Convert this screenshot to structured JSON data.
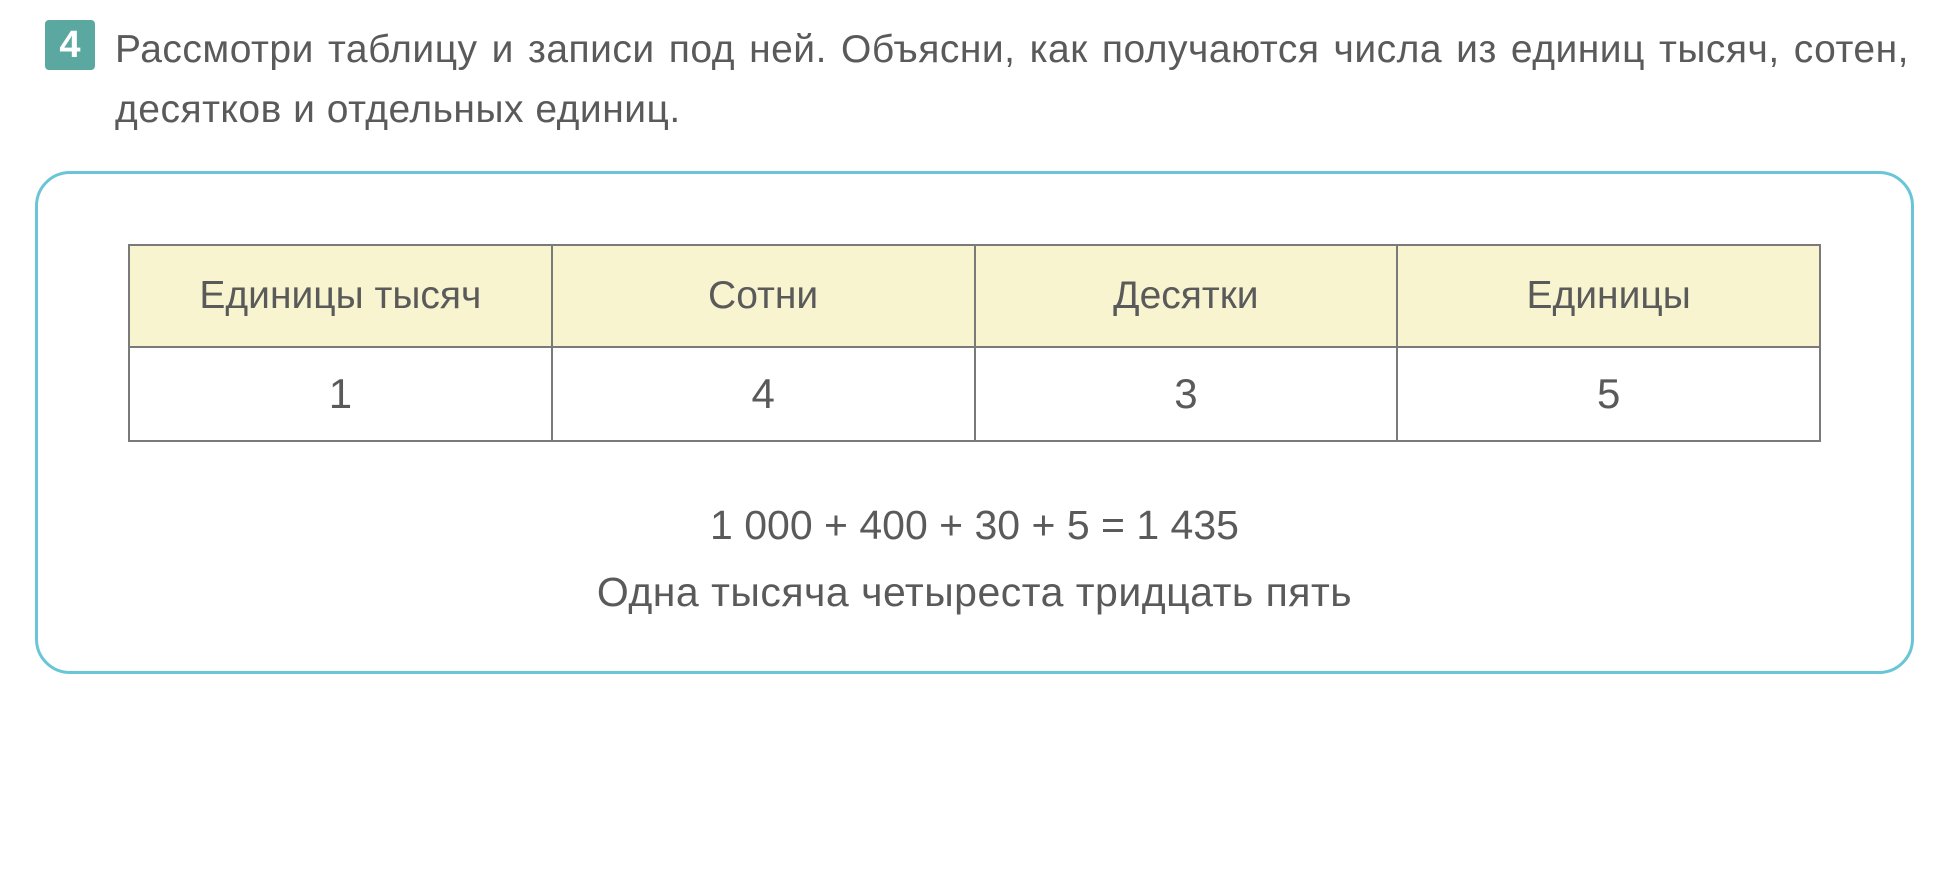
{
  "task": {
    "number": "4",
    "text": "Рассмотри таблицу и записи под ней. Объясни, как получаются числа из единиц тысяч, сотен, десятков и отдельных единиц."
  },
  "place_table": {
    "type": "table",
    "columns": [
      "Единицы тысяч",
      "Сотни",
      "Десятки",
      "Единицы"
    ],
    "rows": [
      [
        "1",
        "4",
        "3",
        "5"
      ]
    ],
    "header_bg": "#f8f4cf",
    "border_color": "#7a7a7a",
    "font_size_header": 39,
    "font_size_cell": 42
  },
  "equation": "1 000 + 400 + 30 + 5 = 1 435",
  "number_in_words": "Одна тысяча четыреста тридцать пять",
  "styles": {
    "task_number_bg": "#5ba8a0",
    "task_number_fg": "#ffffff",
    "box_border_color": "#6ac5d6",
    "body_bg": "#ffffff",
    "text_color": "#5a5a5a",
    "font_family": "Verdana"
  }
}
